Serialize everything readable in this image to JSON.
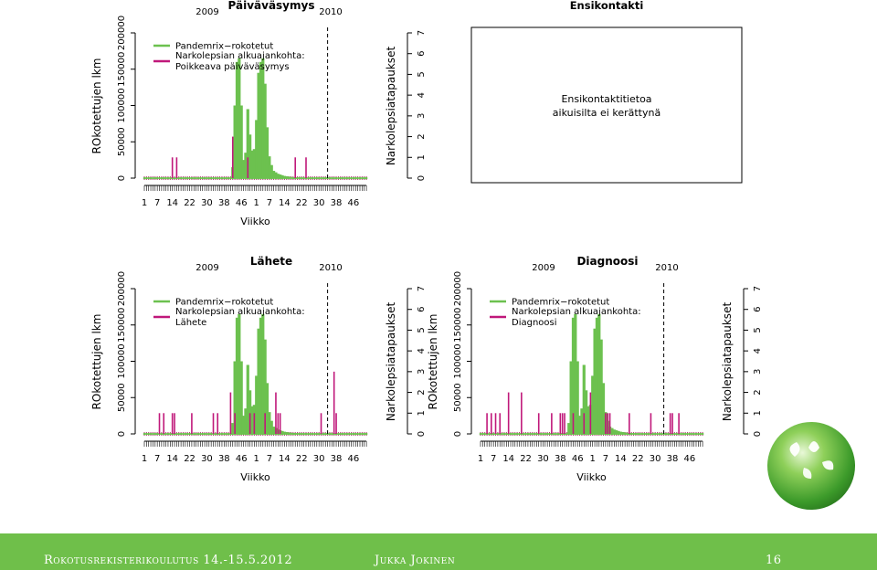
{
  "footer": {
    "course": "Rokotusrekisterikoulutus 14.-15.5.2012",
    "author": "Jukka Jokinen",
    "page": "16"
  },
  "axis_labels": {
    "y_left": "ROkotettujen lkm",
    "y_right": "Narkolepsiatapaukset",
    "x": "Viikko"
  },
  "ensikontakti": {
    "title": "Ensikontakti",
    "line1": "Ensikontaktitietoa",
    "line2": "aikuisilta ei kerättynä"
  },
  "colors": {
    "vaccinated": "#6cc14f",
    "cases": "#c0187a"
  },
  "chart_data": [
    {
      "type": "bar",
      "title": "Päiväväsymys",
      "year_labels": [
        "2009",
        "2010"
      ],
      "xlabel": "Viikko",
      "ylabel": "ROkotettujen lkm",
      "y2label": "Narkolepsiatapaukset",
      "x_tick_labels": [
        "1",
        "7",
        "14",
        "22",
        "30",
        "38",
        "46",
        "1",
        "7",
        "14",
        "22",
        "30",
        "38",
        "46"
      ],
      "y_tick_labels": [
        "0",
        "50000",
        "100000",
        "150000",
        "200000"
      ],
      "y2_tick_labels": [
        "0",
        "1",
        "2",
        "3",
        "4",
        "5",
        "6",
        "7"
      ],
      "ylim": [
        0,
        200000
      ],
      "y2lim": [
        0,
        7
      ],
      "legend": [
        "Pandemrix−rokotetut",
        "Narkolepsian alkuajankohta:",
        "Poikkeava päiväväsymys"
      ],
      "legend_position": "top-left",
      "vaccinated": [
        {
          "w": 42,
          "v": 15000
        },
        {
          "w": 43,
          "v": 100000
        },
        {
          "w": 44,
          "v": 160000
        },
        {
          "w": 45,
          "v": 165000
        },
        {
          "w": 46,
          "v": 100000
        },
        {
          "w": 47,
          "v": 25000
        },
        {
          "w": 48,
          "v": 35000
        },
        {
          "w": 49,
          "v": 95000
        },
        {
          "w": 50,
          "v": 60000
        },
        {
          "w": 51,
          "v": 38000
        },
        {
          "w": 52,
          "v": 40000
        },
        {
          "w": 53,
          "v": 80000
        },
        {
          "w": 54,
          "v": 145000
        },
        {
          "w": 55,
          "v": 160000
        },
        {
          "w": 56,
          "v": 165000
        },
        {
          "w": 57,
          "v": 130000
        },
        {
          "w": 58,
          "v": 70000
        },
        {
          "w": 59,
          "v": 30000
        },
        {
          "w": 60,
          "v": 18000
        },
        {
          "w": 61,
          "v": 10000
        },
        {
          "w": 62,
          "v": 8000
        },
        {
          "w": 63,
          "v": 6000
        },
        {
          "w": 64,
          "v": 5000
        },
        {
          "w": 65,
          "v": 4000
        },
        {
          "w": 66,
          "v": 3000
        },
        {
          "w": 67,
          "v": 2500
        },
        {
          "w": 68,
          "v": 2000
        },
        {
          "w": 69,
          "v": 1500
        },
        {
          "w": 70,
          "v": 1200
        },
        {
          "w": 71,
          "v": 1000
        },
        {
          "w": 72,
          "v": 800
        },
        {
          "w": 73,
          "v": 700
        },
        {
          "w": 74,
          "v": 600
        },
        {
          "w": 75,
          "v": 500
        }
      ],
      "cases": [
        {
          "w": 14,
          "n": 1
        },
        {
          "w": 16,
          "n": 1
        },
        {
          "w": 42,
          "n": 2
        },
        {
          "w": 49,
          "n": 1
        },
        {
          "w": 71,
          "n": 1
        },
        {
          "w": 76,
          "n": 1
        }
      ],
      "vline_week": 86
    },
    {
      "type": "bar",
      "title": "Lähete",
      "year_labels": [
        "2009",
        "2010"
      ],
      "xlabel": "Viikko",
      "ylabel": "ROkotettujen lkm",
      "y2label": "Narkolepsiatapaukset",
      "x_tick_labels": [
        "1",
        "7",
        "14",
        "22",
        "30",
        "38",
        "46",
        "1",
        "7",
        "14",
        "22",
        "30",
        "38",
        "46"
      ],
      "y_tick_labels": [
        "0",
        "50000",
        "100000",
        "150000",
        "200000"
      ],
      "y2_tick_labels": [
        "0",
        "1",
        "2",
        "3",
        "4",
        "5",
        "6",
        "7"
      ],
      "ylim": [
        0,
        200000
      ],
      "y2lim": [
        0,
        7
      ],
      "legend": [
        "Pandemrix−rokotetut",
        "Narkolepsian alkuajankohta:",
        "Lähete"
      ],
      "legend_position": "top-left",
      "vaccinated": [
        {
          "w": 42,
          "v": 15000
        },
        {
          "w": 43,
          "v": 100000
        },
        {
          "w": 44,
          "v": 160000
        },
        {
          "w": 45,
          "v": 165000
        },
        {
          "w": 46,
          "v": 100000
        },
        {
          "w": 47,
          "v": 25000
        },
        {
          "w": 48,
          "v": 35000
        },
        {
          "w": 49,
          "v": 95000
        },
        {
          "w": 50,
          "v": 60000
        },
        {
          "w": 51,
          "v": 38000
        },
        {
          "w": 52,
          "v": 40000
        },
        {
          "w": 53,
          "v": 80000
        },
        {
          "w": 54,
          "v": 145000
        },
        {
          "w": 55,
          "v": 160000
        },
        {
          "w": 56,
          "v": 165000
        },
        {
          "w": 57,
          "v": 130000
        },
        {
          "w": 58,
          "v": 70000
        },
        {
          "w": 59,
          "v": 30000
        },
        {
          "w": 60,
          "v": 18000
        },
        {
          "w": 61,
          "v": 10000
        },
        {
          "w": 62,
          "v": 8000
        },
        {
          "w": 63,
          "v": 6000
        },
        {
          "w": 64,
          "v": 5000
        },
        {
          "w": 65,
          "v": 4000
        },
        {
          "w": 66,
          "v": 3000
        },
        {
          "w": 67,
          "v": 2500
        },
        {
          "w": 68,
          "v": 2000
        },
        {
          "w": 69,
          "v": 1500
        },
        {
          "w": 70,
          "v": 1200
        },
        {
          "w": 71,
          "v": 1000
        },
        {
          "w": 72,
          "v": 800
        },
        {
          "w": 73,
          "v": 700
        },
        {
          "w": 74,
          "v": 600
        },
        {
          "w": 75,
          "v": 500
        }
      ],
      "cases": [
        {
          "w": 8,
          "n": 1
        },
        {
          "w": 10,
          "n": 1
        },
        {
          "w": 14,
          "n": 1
        },
        {
          "w": 15,
          "n": 1
        },
        {
          "w": 23,
          "n": 1
        },
        {
          "w": 33,
          "n": 1
        },
        {
          "w": 35,
          "n": 1
        },
        {
          "w": 41,
          "n": 2
        },
        {
          "w": 43,
          "n": 1
        },
        {
          "w": 50,
          "n": 1
        },
        {
          "w": 52,
          "n": 1
        },
        {
          "w": 57,
          "n": 1
        },
        {
          "w": 62,
          "n": 2
        },
        {
          "w": 63,
          "n": 1
        },
        {
          "w": 64,
          "n": 1
        },
        {
          "w": 83,
          "n": 1
        },
        {
          "w": 89,
          "n": 3
        },
        {
          "w": 90,
          "n": 1
        }
      ],
      "vline_week": 86
    },
    {
      "type": "bar",
      "title": "Diagnoosi",
      "year_labels": [
        "2009",
        "2010"
      ],
      "xlabel": "Viikko",
      "ylabel": "ROkotettujen lkm",
      "y2label": "Narkolepsiatapaukset",
      "x_tick_labels": [
        "1",
        "7",
        "14",
        "22",
        "30",
        "38",
        "46",
        "1",
        "7",
        "14",
        "22",
        "30",
        "38",
        "46"
      ],
      "y_tick_labels": [
        "0",
        "50000",
        "100000",
        "150000",
        "200000"
      ],
      "y2_tick_labels": [
        "0",
        "1",
        "2",
        "3",
        "4",
        "5",
        "6",
        "7"
      ],
      "ylim": [
        0,
        200000
      ],
      "y2lim": [
        0,
        7
      ],
      "legend": [
        "Pandemrix−rokotetut",
        "Narkolepsian alkuajankohta:",
        "Diagnoosi"
      ],
      "legend_position": "top-left",
      "vaccinated": [
        {
          "w": 42,
          "v": 15000
        },
        {
          "w": 43,
          "v": 100000
        },
        {
          "w": 44,
          "v": 160000
        },
        {
          "w": 45,
          "v": 165000
        },
        {
          "w": 46,
          "v": 100000
        },
        {
          "w": 47,
          "v": 25000
        },
        {
          "w": 48,
          "v": 35000
        },
        {
          "w": 49,
          "v": 95000
        },
        {
          "w": 50,
          "v": 60000
        },
        {
          "w": 51,
          "v": 38000
        },
        {
          "w": 52,
          "v": 40000
        },
        {
          "w": 53,
          "v": 80000
        },
        {
          "w": 54,
          "v": 145000
        },
        {
          "w": 55,
          "v": 160000
        },
        {
          "w": 56,
          "v": 165000
        },
        {
          "w": 57,
          "v": 130000
        },
        {
          "w": 58,
          "v": 70000
        },
        {
          "w": 59,
          "v": 30000
        },
        {
          "w": 60,
          "v": 18000
        },
        {
          "w": 61,
          "v": 10000
        },
        {
          "w": 62,
          "v": 8000
        },
        {
          "w": 63,
          "v": 6000
        },
        {
          "w": 64,
          "v": 5000
        },
        {
          "w": 65,
          "v": 4000
        },
        {
          "w": 66,
          "v": 3000
        },
        {
          "w": 67,
          "v": 2500
        },
        {
          "w": 68,
          "v": 2000
        },
        {
          "w": 69,
          "v": 1500
        },
        {
          "w": 70,
          "v": 1200
        },
        {
          "w": 71,
          "v": 1000
        },
        {
          "w": 72,
          "v": 800
        },
        {
          "w": 73,
          "v": 700
        },
        {
          "w": 74,
          "v": 600
        },
        {
          "w": 75,
          "v": 500
        }
      ],
      "cases": [
        {
          "w": 4,
          "n": 1
        },
        {
          "w": 6,
          "n": 1
        },
        {
          "w": 8,
          "n": 1
        },
        {
          "w": 10,
          "n": 1
        },
        {
          "w": 14,
          "n": 2
        },
        {
          "w": 20,
          "n": 2
        },
        {
          "w": 28,
          "n": 1
        },
        {
          "w": 34,
          "n": 1
        },
        {
          "w": 38,
          "n": 1
        },
        {
          "w": 39,
          "n": 1
        },
        {
          "w": 40,
          "n": 1
        },
        {
          "w": 44,
          "n": 1
        },
        {
          "w": 49,
          "n": 1
        },
        {
          "w": 52,
          "n": 2
        },
        {
          "w": 59,
          "n": 1
        },
        {
          "w": 60,
          "n": 1
        },
        {
          "w": 61,
          "n": 1
        },
        {
          "w": 70,
          "n": 1
        },
        {
          "w": 80,
          "n": 1
        },
        {
          "w": 89,
          "n": 1
        },
        {
          "w": 90,
          "n": 1
        },
        {
          "w": 93,
          "n": 1
        }
      ],
      "vline_week": 86
    }
  ]
}
